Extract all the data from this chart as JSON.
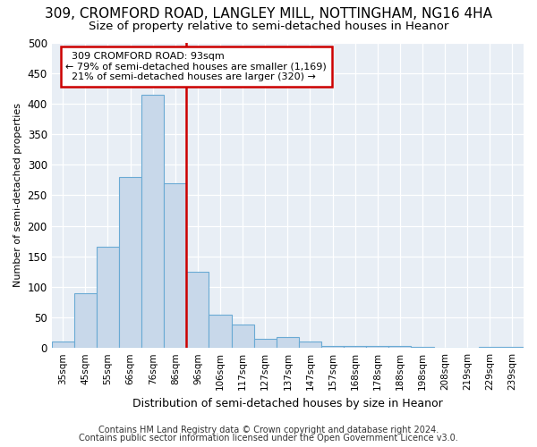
{
  "title1": "309, CROMFORD ROAD, LANGLEY MILL, NOTTINGHAM, NG16 4HA",
  "title2": "Size of property relative to semi-detached houses in Heanor",
  "xlabel": "Distribution of semi-detached houses by size in Heanor",
  "ylabel": "Number of semi-detached properties",
  "footer1": "Contains HM Land Registry data © Crown copyright and database right 2024.",
  "footer2": "Contains public sector information licensed under the Open Government Licence v3.0.",
  "categories": [
    "35sqm",
    "45sqm",
    "55sqm",
    "66sqm",
    "76sqm",
    "86sqm",
    "96sqm",
    "106sqm",
    "117sqm",
    "127sqm",
    "137sqm",
    "147sqm",
    "157sqm",
    "168sqm",
    "178sqm",
    "188sqm",
    "198sqm",
    "208sqm",
    "219sqm",
    "229sqm",
    "239sqm"
  ],
  "values": [
    10,
    90,
    165,
    280,
    415,
    270,
    125,
    55,
    38,
    15,
    18,
    10,
    3,
    3,
    3,
    3,
    1,
    0,
    0,
    1,
    2
  ],
  "bar_color": "#c8d8ea",
  "bar_edge_color": "#6aaad4",
  "subject_line_color": "#cc0000",
  "subject_label": "309 CROMFORD ROAD: 93sqm",
  "pct_smaller": 79,
  "n_smaller": 1169,
  "pct_larger": 21,
  "n_larger": 320,
  "annotation_box_facecolor": "#ffffff",
  "annotation_box_edgecolor": "#cc0000",
  "ylim": [
    0,
    500
  ],
  "yticks": [
    0,
    50,
    100,
    150,
    200,
    250,
    300,
    350,
    400,
    450,
    500
  ],
  "bg_color": "#ffffff",
  "plot_bg_color": "#e8eef5",
  "grid_color": "#ffffff",
  "title1_fontsize": 11,
  "title2_fontsize": 9.5
}
